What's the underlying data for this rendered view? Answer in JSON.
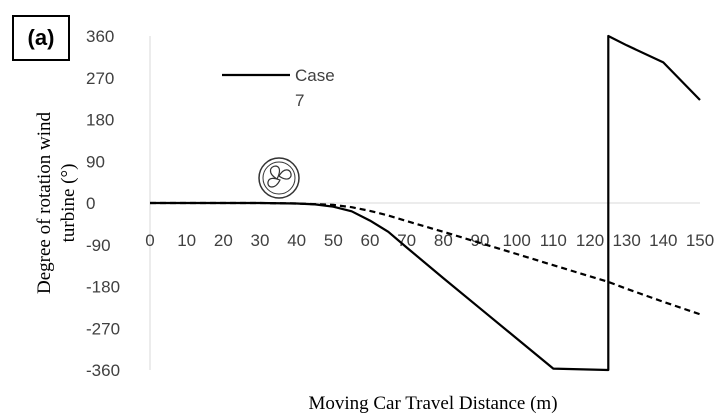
{
  "panel_label": "(a)",
  "chart_data": {
    "type": "line",
    "xlabel": "Moving Car Travel Distance (m)",
    "ylabel_lines": [
      "Degree of rotation wind",
      "turbine (°)"
    ],
    "xlim": [
      0,
      150
    ],
    "ylim": [
      -360,
      360
    ],
    "x_ticks": [
      0,
      10,
      20,
      30,
      40,
      50,
      60,
      70,
      80,
      90,
      100,
      110,
      120,
      130,
      140,
      150
    ],
    "y_ticks": [
      360,
      270,
      180,
      90,
      0,
      -90,
      -180,
      -270,
      -360
    ],
    "legend": {
      "label_lines": [
        "Case",
        "7"
      ],
      "placement": "top-left"
    },
    "series": [
      {
        "name": "Case 7",
        "style": "solid",
        "color": "#000000",
        "points": [
          [
            0,
            0
          ],
          [
            30,
            0
          ],
          [
            40,
            -1
          ],
          [
            45,
            -3
          ],
          [
            50,
            -8
          ],
          [
            55,
            -18
          ],
          [
            60,
            -38
          ],
          [
            65,
            -62
          ],
          [
            70,
            -96
          ],
          [
            80,
            -162
          ],
          [
            90,
            -227
          ],
          [
            100,
            -292
          ],
          [
            110,
            -357
          ],
          [
            125,
            -360
          ],
          [
            125,
            360
          ],
          [
            130,
            340
          ],
          [
            140,
            303
          ],
          [
            150,
            222
          ]
        ]
      },
      {
        "style": "dashed",
        "color": "#000000",
        "points": [
          [
            0,
            0
          ],
          [
            30,
            0
          ],
          [
            40,
            -1
          ],
          [
            50,
            -4
          ],
          [
            55,
            -9
          ],
          [
            60,
            -17
          ],
          [
            65,
            -27
          ],
          [
            70,
            -39
          ],
          [
            80,
            -62
          ],
          [
            90,
            -86
          ],
          [
            100,
            -110
          ],
          [
            110,
            -134
          ],
          [
            125,
            -170
          ],
          [
            130,
            -185
          ],
          [
            140,
            -213
          ],
          [
            150,
            -240
          ]
        ]
      }
    ]
  },
  "icon": {
    "name": "wind-turbine-icon"
  }
}
